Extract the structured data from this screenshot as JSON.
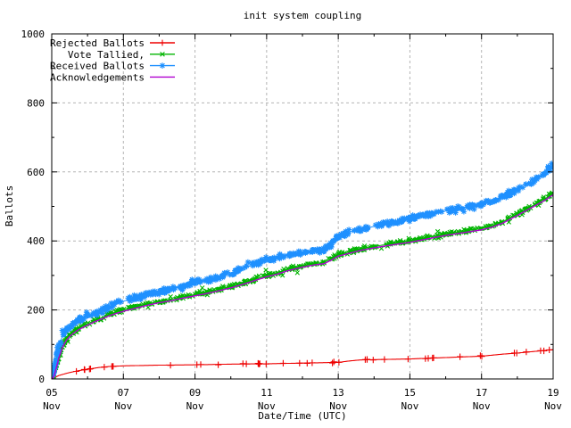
{
  "chart_data": {
    "type": "scatter-line",
    "title": "init system coupling",
    "xlabel": "Date/Time (UTC)",
    "ylabel": "Ballots",
    "x_unit": "day of November (UTC)",
    "xlim_days_nov": [
      5,
      19
    ],
    "ylim": [
      0,
      1000
    ],
    "x_major_tick_days": [
      5,
      7,
      9,
      11,
      13,
      15,
      17,
      19
    ],
    "x_major_tick_labels": [
      [
        "05",
        "Nov"
      ],
      [
        "07",
        "Nov"
      ],
      [
        "09",
        "Nov"
      ],
      [
        "11",
        "Nov"
      ],
      [
        "13",
        "Nov"
      ],
      [
        "15",
        "Nov"
      ],
      [
        "17",
        "Nov"
      ],
      [
        "19",
        "Nov"
      ]
    ],
    "x_minor_tick_step_days": 1,
    "y_major_ticks": [
      0,
      200,
      400,
      600,
      800,
      1000
    ],
    "y_minor_tick_step": 100,
    "grid": {
      "show": true,
      "color": "#b4b4b4",
      "style": "dashed"
    },
    "legend": {
      "position": "top-left-inside",
      "border": false
    },
    "background_color": "#ffffff",
    "border_color": "#000000",
    "series": [
      {
        "name": "Rejected Ballots",
        "color": "#ee0000",
        "marker": "plus",
        "line": true,
        "points": [
          [
            5,
            0
          ],
          [
            5.1,
            5
          ],
          [
            5.2,
            10
          ],
          [
            5.4,
            16
          ],
          [
            5.6,
            21
          ],
          [
            5.8,
            25
          ],
          [
            6,
            28
          ],
          [
            6.3,
            33
          ],
          [
            6.6,
            36
          ],
          [
            7,
            38
          ],
          [
            7.5,
            39
          ],
          [
            8,
            40
          ],
          [
            9,
            41
          ],
          [
            10,
            43
          ],
          [
            11,
            44
          ],
          [
            12,
            46
          ],
          [
            13,
            48
          ],
          [
            13.3,
            52
          ],
          [
            13.6,
            55
          ],
          [
            14,
            56
          ],
          [
            15,
            58
          ],
          [
            15.5,
            60
          ],
          [
            16,
            62
          ],
          [
            16.5,
            64
          ],
          [
            17,
            66
          ],
          [
            17.3,
            69
          ],
          [
            17.6,
            72
          ],
          [
            18,
            75
          ],
          [
            18.4,
            79
          ],
          [
            18.7,
            82
          ],
          [
            19,
            85
          ]
        ]
      },
      {
        "name": "Vote Tallied,",
        "color": "#00b400",
        "marker": "cross",
        "line": true,
        "points": [
          [
            5,
            0
          ],
          [
            5.05,
            8
          ],
          [
            5.1,
            25
          ],
          [
            5.15,
            45
          ],
          [
            5.2,
            65
          ],
          [
            5.3,
            95
          ],
          [
            5.4,
            115
          ],
          [
            5.5,
            127
          ],
          [
            5.6,
            136
          ],
          [
            5.75,
            147
          ],
          [
            6,
            160
          ],
          [
            6.2,
            170
          ],
          [
            6.4,
            178
          ],
          [
            6.6,
            187
          ],
          [
            6.8,
            194
          ],
          [
            7,
            200
          ],
          [
            7.3,
            208
          ],
          [
            7.6,
            216
          ],
          [
            8,
            225
          ],
          [
            8.3,
            230
          ],
          [
            8.6,
            237
          ],
          [
            9,
            245
          ],
          [
            9.3,
            251
          ],
          [
            9.6,
            258
          ],
          [
            10,
            268
          ],
          [
            10.3,
            277
          ],
          [
            10.6,
            287
          ],
          [
            11,
            300
          ],
          [
            11.3,
            308
          ],
          [
            11.6,
            318
          ],
          [
            12,
            328
          ],
          [
            12.3,
            334
          ],
          [
            12.6,
            338
          ],
          [
            12.8,
            348
          ],
          [
            13,
            360
          ],
          [
            13.3,
            368
          ],
          [
            13.6,
            376
          ],
          [
            14,
            384
          ],
          [
            14.3,
            389
          ],
          [
            14.6,
            394
          ],
          [
            15,
            400
          ],
          [
            15.5,
            410
          ],
          [
            16,
            420
          ],
          [
            16.5,
            428
          ],
          [
            17,
            436
          ],
          [
            17.3,
            444
          ],
          [
            17.6,
            456
          ],
          [
            18,
            478
          ],
          [
            18.3,
            495
          ],
          [
            18.6,
            512
          ],
          [
            18.8,
            524
          ],
          [
            19,
            538
          ]
        ]
      },
      {
        "name": "Received Ballots",
        "color": "#1e90ff",
        "marker": "asterisk",
        "line": true,
        "points": [
          [
            5,
            0
          ],
          [
            5.05,
            15
          ],
          [
            5.1,
            45
          ],
          [
            5.15,
            70
          ],
          [
            5.2,
            95
          ],
          [
            5.3,
            125
          ],
          [
            5.4,
            143
          ],
          [
            5.5,
            152
          ],
          [
            5.6,
            160
          ],
          [
            5.75,
            170
          ],
          [
            6,
            185
          ],
          [
            6.2,
            190
          ],
          [
            6.4,
            196
          ],
          [
            6.6,
            210
          ],
          [
            6.8,
            218
          ],
          [
            7,
            225
          ],
          [
            7.3,
            235
          ],
          [
            7.6,
            243
          ],
          [
            8,
            252
          ],
          [
            8.3,
            260
          ],
          [
            8.6,
            268
          ],
          [
            9,
            280
          ],
          [
            9.3,
            287
          ],
          [
            9.6,
            294
          ],
          [
            10,
            305
          ],
          [
            10.3,
            318
          ],
          [
            10.6,
            330
          ],
          [
            11,
            345
          ],
          [
            11.3,
            352
          ],
          [
            11.6,
            360
          ],
          [
            12,
            368
          ],
          [
            12.3,
            372
          ],
          [
            12.6,
            375
          ],
          [
            12.8,
            390
          ],
          [
            13,
            413
          ],
          [
            13.3,
            425
          ],
          [
            13.6,
            433
          ],
          [
            14,
            442
          ],
          [
            14.3,
            450
          ],
          [
            14.6,
            457
          ],
          [
            15,
            465
          ],
          [
            15.5,
            476
          ],
          [
            16,
            487
          ],
          [
            16.5,
            496
          ],
          [
            17,
            505
          ],
          [
            17.3,
            515
          ],
          [
            17.6,
            530
          ],
          [
            18,
            548
          ],
          [
            18.3,
            565
          ],
          [
            18.6,
            585
          ],
          [
            18.8,
            600
          ],
          [
            19,
            620
          ]
        ]
      },
      {
        "name": "Acknowledgements",
        "color": "#b000d0",
        "marker": "none",
        "line": true,
        "points": [
          [
            5,
            0
          ],
          [
            5.05,
            5
          ],
          [
            5.1,
            21
          ],
          [
            5.15,
            41
          ],
          [
            5.2,
            61
          ],
          [
            5.3,
            91
          ],
          [
            5.4,
            111
          ],
          [
            5.5,
            123
          ],
          [
            5.6,
            132
          ],
          [
            5.75,
            143
          ],
          [
            6,
            156
          ],
          [
            6.2,
            166
          ],
          [
            6.4,
            174
          ],
          [
            6.6,
            183
          ],
          [
            6.8,
            190
          ],
          [
            7,
            196
          ],
          [
            7.3,
            204
          ],
          [
            7.6,
            212
          ],
          [
            8,
            221
          ],
          [
            8.3,
            226
          ],
          [
            8.6,
            233
          ],
          [
            9,
            241
          ],
          [
            9.3,
            247
          ],
          [
            9.6,
            254
          ],
          [
            10,
            264
          ],
          [
            10.3,
            273
          ],
          [
            10.6,
            283
          ],
          [
            11,
            296
          ],
          [
            11.3,
            304
          ],
          [
            11.6,
            314
          ],
          [
            12,
            324
          ],
          [
            12.3,
            330
          ],
          [
            12.6,
            334
          ],
          [
            12.8,
            344
          ],
          [
            13,
            356
          ],
          [
            13.3,
            364
          ],
          [
            13.6,
            372
          ],
          [
            14,
            380
          ],
          [
            14.3,
            385
          ],
          [
            14.6,
            390
          ],
          [
            15,
            396
          ],
          [
            15.5,
            406
          ],
          [
            16,
            416
          ],
          [
            16.5,
            424
          ],
          [
            17,
            432
          ],
          [
            17.3,
            440
          ],
          [
            17.6,
            452
          ],
          [
            18,
            474
          ],
          [
            18.3,
            491
          ],
          [
            18.6,
            508
          ],
          [
            18.8,
            520
          ],
          [
            19,
            534
          ]
        ]
      }
    ]
  }
}
